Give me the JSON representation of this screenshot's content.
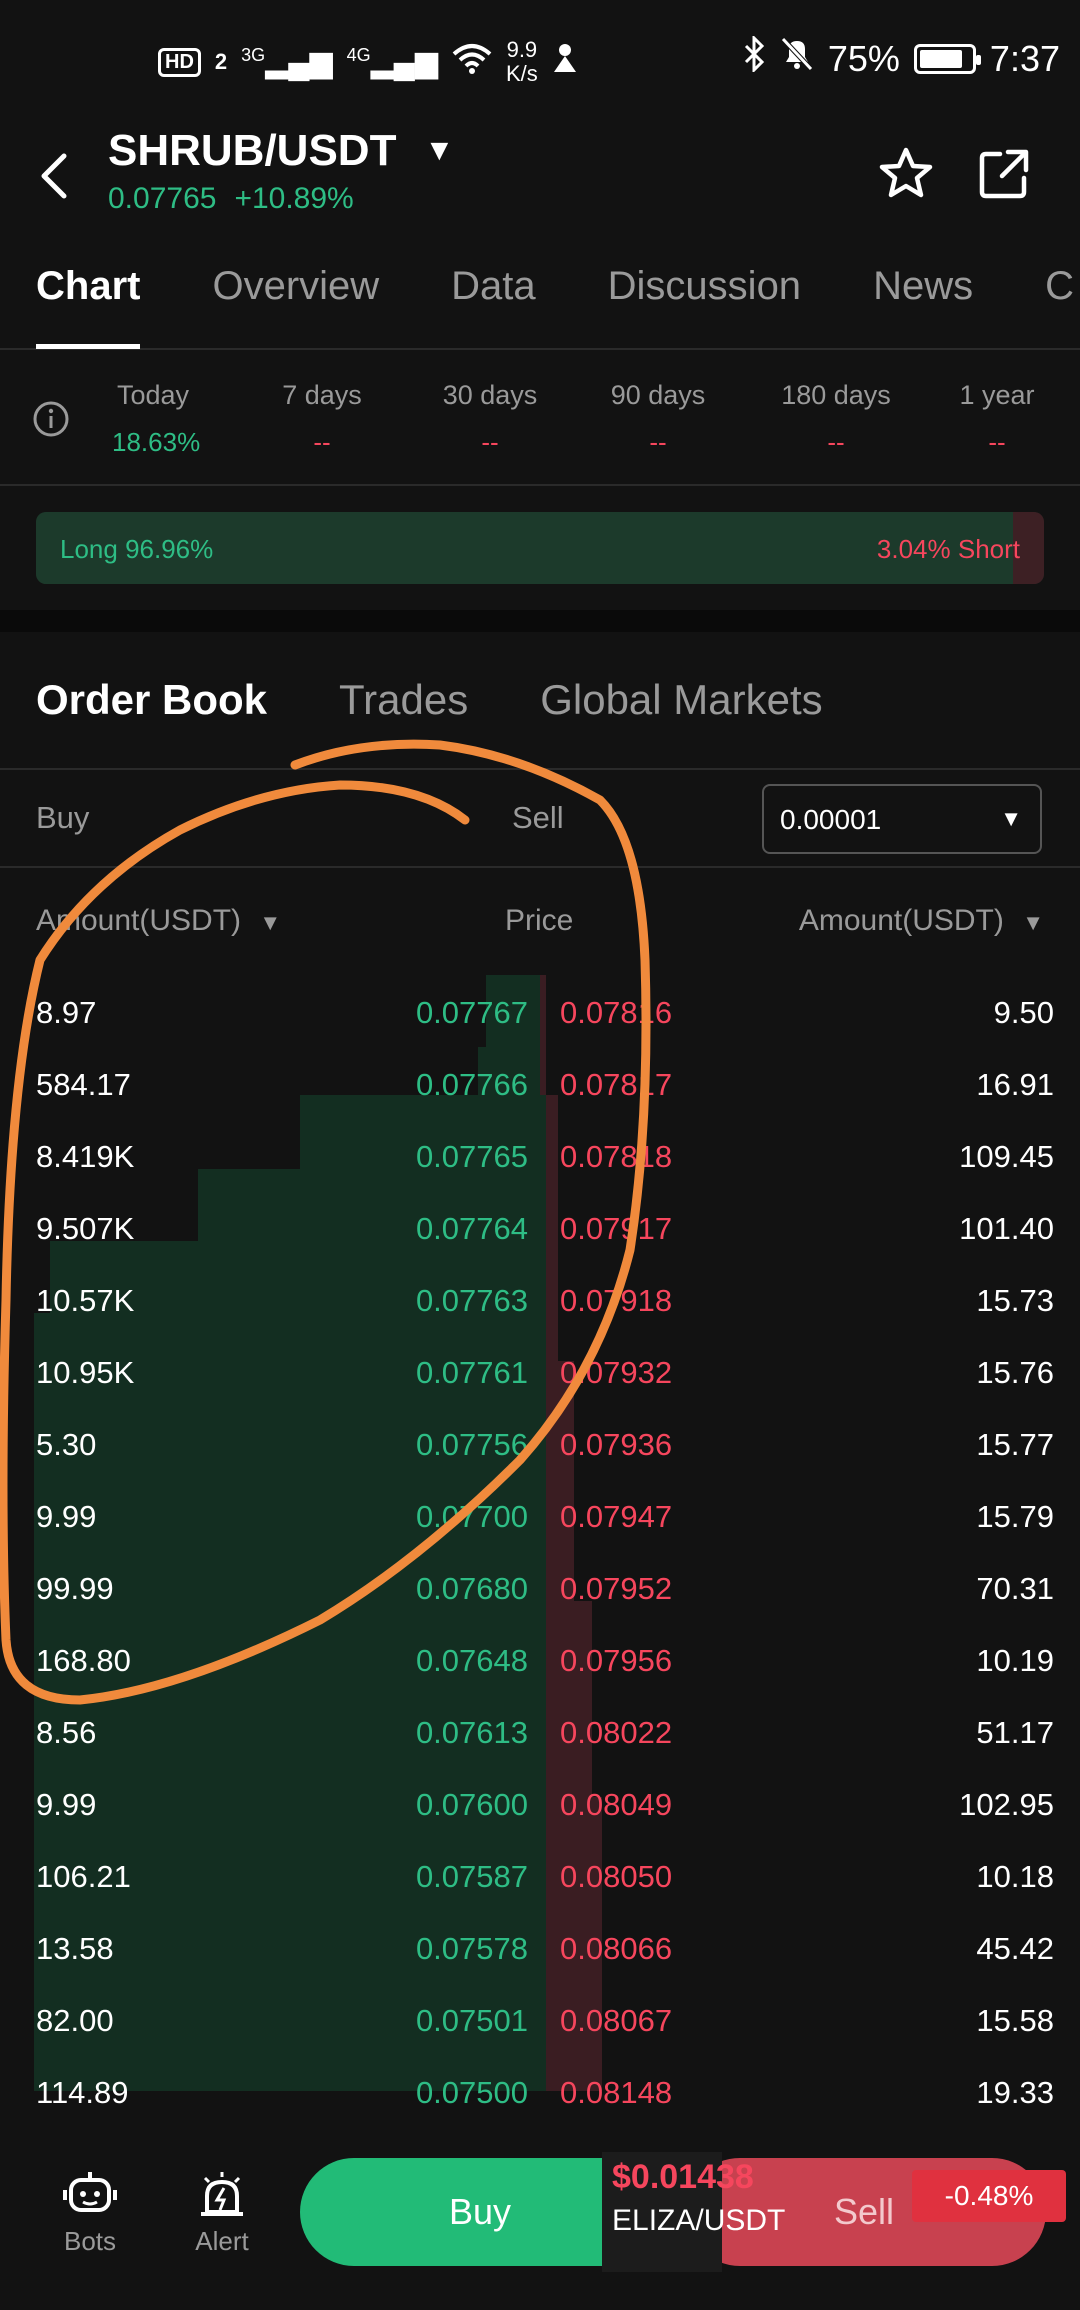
{
  "status_bar": {
    "hd": "HD",
    "sim": "2",
    "net1": "3G",
    "net2": "4G",
    "speed_value": "9.9",
    "speed_unit": "K/s",
    "battery": "75%",
    "time": "7:37"
  },
  "header": {
    "pair": "SHRUB/USDT",
    "price": "0.07765",
    "change": "+10.89%"
  },
  "tabs": [
    "Chart",
    "Overview",
    "Data",
    "Discussion",
    "News",
    "C"
  ],
  "periods": [
    {
      "label": "Today",
      "value": "18.63%"
    },
    {
      "label": "7 days",
      "value": "--"
    },
    {
      "label": "30 days",
      "value": "--"
    },
    {
      "label": "90 days",
      "value": "--"
    },
    {
      "label": "180 days",
      "value": "--"
    },
    {
      "label": "1 year",
      "value": "--"
    }
  ],
  "long_short": {
    "long_label": "Long 96.96%",
    "short_label": "3.04% Short",
    "long_fraction": 0.9696
  },
  "order_tabs": [
    "Order Book",
    "Trades",
    "Global Markets"
  ],
  "filter": {
    "buy": "Buy",
    "sell": "Sell",
    "step": "0.00001"
  },
  "columns": {
    "left": "Amount(USDT)",
    "mid": "Price",
    "right": "Amount(USDT)"
  },
  "order_book": [
    {
      "bid_amount": "8.97",
      "bid_price": "0.07767",
      "ask_price": "0.07816",
      "ask_amount": "9.50"
    },
    {
      "bid_amount": "584.17",
      "bid_price": "0.07766",
      "ask_price": "0.07817",
      "ask_amount": "16.91"
    },
    {
      "bid_amount": "8.419K",
      "bid_price": "0.07765",
      "ask_price": "0.07818",
      "ask_amount": "109.45"
    },
    {
      "bid_amount": "9.507K",
      "bid_price": "0.07764",
      "ask_price": "0.07917",
      "ask_amount": "101.40"
    },
    {
      "bid_amount": "10.57K",
      "bid_price": "0.07763",
      "ask_price": "0.07918",
      "ask_amount": "15.73"
    },
    {
      "bid_amount": "10.95K",
      "bid_price": "0.07761",
      "ask_price": "0.07932",
      "ask_amount": "15.76"
    },
    {
      "bid_amount": "5.30",
      "bid_price": "0.07756",
      "ask_price": "0.07936",
      "ask_amount": "15.77"
    },
    {
      "bid_amount": "9.99",
      "bid_price": "0.07700",
      "ask_price": "0.07947",
      "ask_amount": "15.79"
    },
    {
      "bid_amount": "99.99",
      "bid_price": "0.07680",
      "ask_price": "0.07952",
      "ask_amount": "70.31"
    },
    {
      "bid_amount": "168.80",
      "bid_price": "0.07648",
      "ask_price": "0.07956",
      "ask_amount": "10.19"
    },
    {
      "bid_amount": "8.56",
      "bid_price": "0.07613",
      "ask_price": "0.08022",
      "ask_amount": "51.17"
    },
    {
      "bid_amount": "9.99",
      "bid_price": "0.07600",
      "ask_price": "0.08049",
      "ask_amount": "102.95"
    },
    {
      "bid_amount": "106.21",
      "bid_price": "0.07587",
      "ask_price": "0.08050",
      "ask_amount": "10.18"
    },
    {
      "bid_amount": "13.58",
      "bid_price": "0.07578",
      "ask_price": "0.08066",
      "ask_amount": "45.42"
    },
    {
      "bid_amount": "82.00",
      "bid_price": "0.07501",
      "ask_price": "0.08067",
      "ask_amount": "15.58"
    },
    {
      "bid_amount": "114.89",
      "bid_price": "0.07500",
      "ask_price": "0.08148",
      "ask_amount": "19.33"
    }
  ],
  "bottom": {
    "bots": "Bots",
    "alert": "Alert",
    "buy": "Buy",
    "sell": "Sell",
    "float_price": "$0.01438",
    "float_pair": "ELIZA/USDT",
    "float_change": "-0.48%"
  },
  "colors": {
    "up": "#2ebd85",
    "down": "#f6465d",
    "buy_button": "#22bb77",
    "sell_button": "#c8414f",
    "annotation": "#f08a3c"
  }
}
